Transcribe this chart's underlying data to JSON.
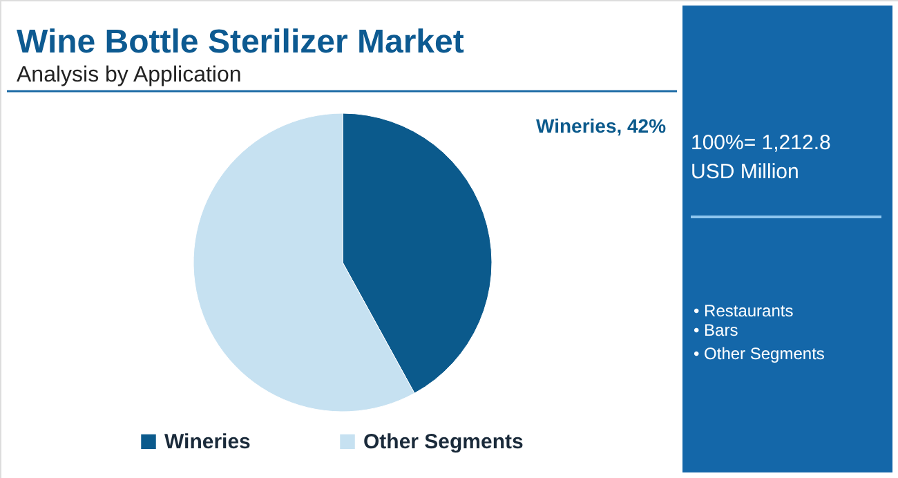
{
  "chart_data": {
    "type": "pie",
    "title": "Wine Bottle Sterilizer Market",
    "subtitle": "Analysis by Application",
    "categories": [
      "Wineries",
      "Other Segments"
    ],
    "values": [
      42,
      58
    ],
    "colors": [
      "#0b5a8c",
      "#c6e1f1"
    ],
    "value_labels": [
      "Wineries, 42%",
      null
    ],
    "legend": "bottom",
    "annotations": [
      "100%= 1,212.8",
      "USD Million",
      "• Restaurants",
      "• Bars",
      "• Other Segments"
    ]
  }
}
